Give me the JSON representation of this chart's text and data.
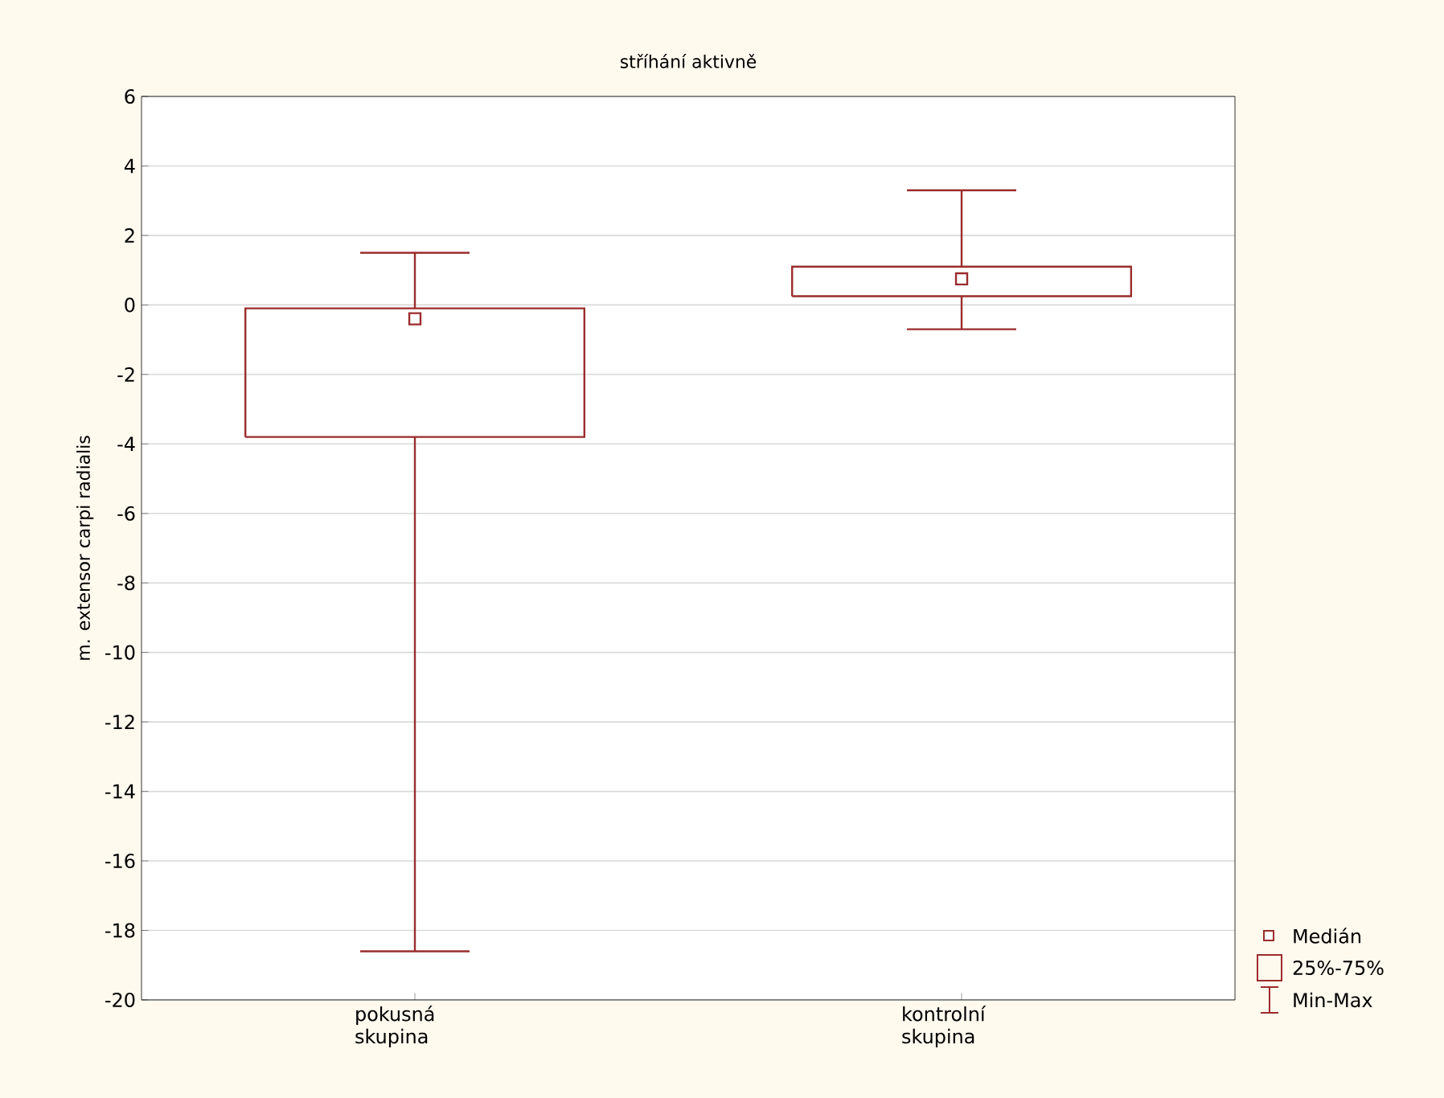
{
  "chart_data": {
    "type": "box",
    "title": "stříhání aktivně",
    "ylabel": "m. extensor carpi radialis",
    "categories": [
      "pokusná skupina",
      "kontrolní skupina"
    ],
    "series": [
      {
        "color": "#9b2c2c",
        "boxes": [
          {
            "low": -18.6,
            "q1": -3.8,
            "median": -0.4,
            "q3": -0.1,
            "high": 1.5
          },
          {
            "low": -0.7,
            "q1": 0.25,
            "median": 0.75,
            "q3": 1.1,
            "high": 3.3
          }
        ]
      }
    ],
    "ylim": [
      -20,
      6
    ],
    "yticks": [
      -20,
      -18,
      -16,
      -14,
      -12,
      -10,
      -8,
      -6,
      -4,
      -2,
      0,
      2,
      4,
      6
    ],
    "grid": "y",
    "annotations": [
      "Medián",
      "25%-75%",
      "Min-Max"
    ]
  }
}
